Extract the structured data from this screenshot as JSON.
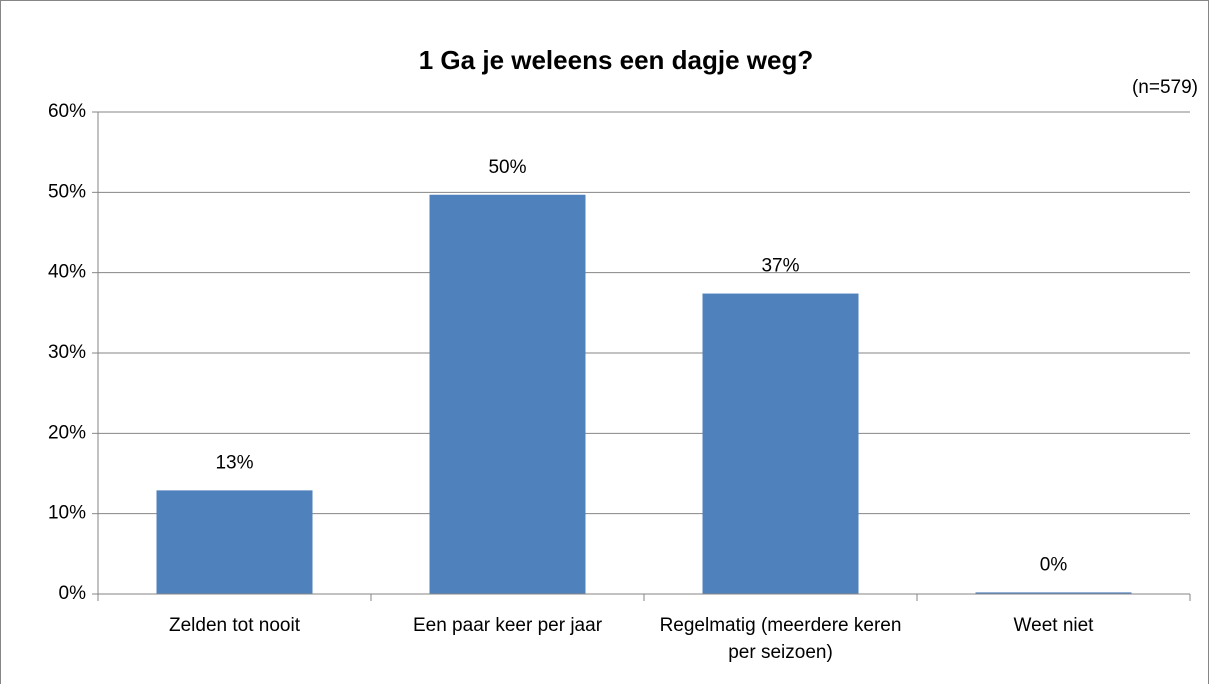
{
  "chart_data": {
    "type": "bar",
    "title": "1 Ga je weleens een dagje weg?",
    "annotation": "(n=579)",
    "categories": [
      "Zelden tot nooit",
      "Een paar keer per jaar",
      "Regelmatig (meerdere keren per seizoen)",
      "Weet niet"
    ],
    "values": [
      12.9,
      49.7,
      37.4,
      0.2
    ],
    "value_labels": [
      "13%",
      "50%",
      "37%",
      "0%"
    ],
    "color": "#4f81bd",
    "ylim": [
      0,
      60
    ],
    "yticks": [
      {
        "value": 0,
        "label": "0%"
      },
      {
        "value": 10,
        "label": "10%"
      },
      {
        "value": 20,
        "label": "20%"
      },
      {
        "value": 30,
        "label": "30%"
      },
      {
        "value": 40,
        "label": "40%"
      },
      {
        "value": 50,
        "label": "50%"
      },
      {
        "value": 60,
        "label": "60%"
      }
    ],
    "grid": true
  }
}
